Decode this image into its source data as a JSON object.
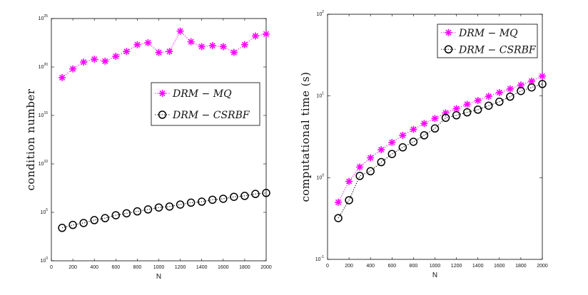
{
  "colors": {
    "mq": "#ff00ff",
    "csrbf": "#000000",
    "axis": "#000000",
    "background": "#ffffff"
  },
  "chart_data": [
    {
      "type": "line",
      "xlabel": "N",
      "ylabel": "condition number",
      "yscale": "log",
      "xlim": [
        0,
        2000
      ],
      "ylim_exp": [
        0,
        25
      ],
      "xticks": [
        0,
        200,
        400,
        600,
        800,
        1000,
        1200,
        1400,
        1600,
        1800,
        2000
      ],
      "yticks_exp": [
        0,
        5,
        10,
        15,
        20,
        25
      ],
      "legend_position": "center-right",
      "x": [
        100,
        200,
        300,
        400,
        500,
        600,
        700,
        800,
        900,
        1000,
        1100,
        1200,
        1300,
        1400,
        1500,
        1600,
        1700,
        1800,
        1900,
        2000
      ],
      "series": [
        {
          "name": "DRM − MQ",
          "label": "DRM − MQ",
          "color": "#ff00ff",
          "marker": "asterisk",
          "values_exp": [
            18.9,
            19.8,
            20.5,
            20.8,
            20.6,
            21.1,
            21.6,
            22.3,
            22.5,
            21.5,
            21.6,
            23.7,
            22.6,
            22.1,
            22.2,
            22.1,
            21.5,
            22.3,
            23.2,
            23.4
          ]
        },
        {
          "name": "DRM − CSRBF",
          "label": "DRM − CSRBF",
          "color": "#000000",
          "marker": "circle",
          "values_exp": [
            3.4,
            3.7,
            3.9,
            4.2,
            4.4,
            4.7,
            4.9,
            5.1,
            5.3,
            5.5,
            5.6,
            5.8,
            6.0,
            6.1,
            6.3,
            6.4,
            6.6,
            6.7,
            6.9,
            7.0
          ]
        }
      ]
    },
    {
      "type": "line",
      "xlabel": "N",
      "ylabel": "computational time (s)",
      "yscale": "log",
      "xlim": [
        0,
        2000
      ],
      "ylim_exp": [
        -1,
        2
      ],
      "xticks": [
        0,
        200,
        400,
        600,
        800,
        1000,
        1200,
        1400,
        1600,
        1800,
        2000
      ],
      "yticks_exp": [
        -1,
        0,
        1,
        2
      ],
      "legend_position": "top-right",
      "x": [
        100,
        200,
        300,
        400,
        500,
        600,
        700,
        800,
        900,
        1000,
        1100,
        1200,
        1300,
        1400,
        1500,
        1600,
        1700,
        1800,
        1900,
        2000
      ],
      "series": [
        {
          "name": "DRM − MQ",
          "label": "DRM − MQ",
          "color": "#ff00ff",
          "marker": "asterisk",
          "values": [
            0.5,
            0.9,
            1.35,
            1.75,
            2.2,
            2.7,
            3.3,
            3.9,
            4.6,
            5.3,
            6.2,
            7.0,
            7.9,
            8.8,
            9.9,
            11.0,
            12.2,
            13.6,
            15.2,
            17.5
          ]
        },
        {
          "name": "DRM − CSRBF",
          "label": "DRM − CSRBF",
          "color": "#000000",
          "marker": "circle",
          "values": [
            0.32,
            0.53,
            1.05,
            1.2,
            1.55,
            1.95,
            2.35,
            2.75,
            3.3,
            4.0,
            5.4,
            5.8,
            6.3,
            6.8,
            7.6,
            8.5,
            9.8,
            11.5,
            12.7,
            14.0
          ]
        }
      ]
    }
  ]
}
